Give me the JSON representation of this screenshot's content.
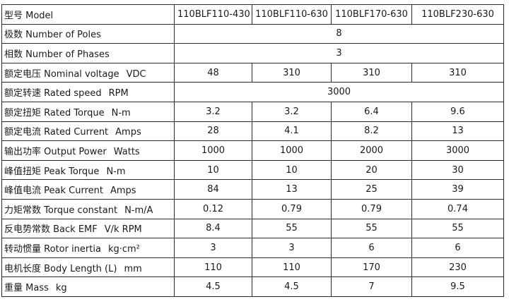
{
  "header": {
    "label": "型号 Model",
    "models": [
      "110BLF110-430",
      "110BLF110-630",
      "110BLF170-630",
      "110BLF230-630"
    ]
  },
  "rows": [
    {
      "label": "极数 Number of Poles",
      "unit": "",
      "span": "8"
    },
    {
      "label": "相数 Number of Phases",
      "unit": "",
      "span": "3"
    },
    {
      "label": "额定电压 Nominal voltage",
      "unit": "VDC",
      "values": [
        "48",
        "310",
        "310",
        "310"
      ]
    },
    {
      "label": "额定转速 Rated speed",
      "unit": "RPM",
      "span": "3000"
    },
    {
      "label": "额定扭矩 Rated Torque",
      "unit": "N-m",
      "values": [
        "3.2",
        "3.2",
        "6.4",
        "9.6"
      ]
    },
    {
      "label": "额定电流 Rated Current",
      "unit": "Amps",
      "values": [
        "28",
        "4.1",
        "8.2",
        "13"
      ]
    },
    {
      "label": "输出功率 Output Power",
      "unit": "Watts",
      "values": [
        "1000",
        "1000",
        "2000",
        "3000"
      ]
    },
    {
      "label": "峰值扭矩 Peak Torque",
      "unit": "N-m",
      "values": [
        "10",
        "10",
        "20",
        "30"
      ]
    },
    {
      "label": "峰值电流 Peak Current",
      "unit": "Amps",
      "values": [
        "84",
        "13",
        "25",
        "39"
      ]
    },
    {
      "label": "力矩常数 Torque constant",
      "unit": "N-m/A",
      "values": [
        "0.12",
        "0.79",
        "0.79",
        "0.74"
      ]
    },
    {
      "label": "反电势常数 Back EMF",
      "unit": "V/k RPM",
      "values": [
        "8.4",
        "55",
        "55",
        "55"
      ]
    },
    {
      "label": "转动惯量 Rotor inertia",
      "unit": "kg·cm²",
      "values": [
        "3",
        "3",
        "6",
        "6"
      ]
    },
    {
      "label": "电机长度 Body Length (L)",
      "unit": "mm",
      "values": [
        "110",
        "110",
        "170",
        "230"
      ]
    },
    {
      "label": "重量 Mass",
      "unit": "kg",
      "values": [
        "4.5",
        "4.5",
        "7",
        "9.5"
      ]
    }
  ]
}
